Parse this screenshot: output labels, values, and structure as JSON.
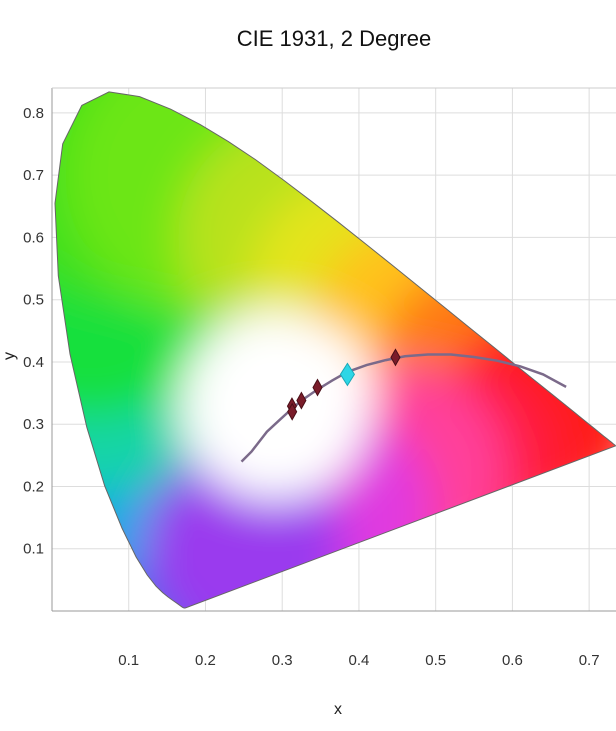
{
  "chart_data": {
    "type": "scatter",
    "title": "CIE 1931, 2 Degree",
    "xlabel": "x",
    "ylabel": "y",
    "xlim": [
      0,
      0.735
    ],
    "ylim": [
      0,
      0.84
    ],
    "xticks": [
      "0.1",
      "0.2",
      "0.3",
      "0.4",
      "0.5",
      "0.6",
      "0.7"
    ],
    "yticks": [
      "0.1",
      "0.2",
      "0.3",
      "0.4",
      "0.5",
      "0.6",
      "0.7",
      "0.8"
    ],
    "grid": true,
    "spectral_locus": [
      [
        0.1741,
        0.005
      ],
      [
        0.174,
        0.005
      ],
      [
        0.1738,
        0.0049
      ],
      [
        0.1736,
        0.0049
      ],
      [
        0.1733,
        0.0048
      ],
      [
        0.173,
        0.0048
      ],
      [
        0.1726,
        0.0048
      ],
      [
        0.1721,
        0.0048
      ],
      [
        0.1714,
        0.0051
      ],
      [
        0.1703,
        0.0058
      ],
      [
        0.1689,
        0.0069
      ],
      [
        0.1669,
        0.0086
      ],
      [
        0.1644,
        0.0109
      ],
      [
        0.1611,
        0.0138
      ],
      [
        0.1566,
        0.0177
      ],
      [
        0.151,
        0.0227
      ],
      [
        0.144,
        0.0297
      ],
      [
        0.1355,
        0.0399
      ],
      [
        0.1241,
        0.0578
      ],
      [
        0.1096,
        0.0868
      ],
      [
        0.0913,
        0.1327
      ],
      [
        0.0687,
        0.2007
      ],
      [
        0.0454,
        0.295
      ],
      [
        0.0235,
        0.4127
      ],
      [
        0.0082,
        0.5384
      ],
      [
        0.0039,
        0.6548
      ],
      [
        0.0139,
        0.7502
      ],
      [
        0.0389,
        0.812
      ],
      [
        0.0743,
        0.8338
      ],
      [
        0.1142,
        0.8262
      ],
      [
        0.1547,
        0.8059
      ],
      [
        0.1929,
        0.7816
      ],
      [
        0.2296,
        0.7543
      ],
      [
        0.2658,
        0.7243
      ],
      [
        0.3016,
        0.6923
      ],
      [
        0.3373,
        0.6589
      ],
      [
        0.3731,
        0.6245
      ],
      [
        0.4087,
        0.5896
      ],
      [
        0.4441,
        0.5547
      ],
      [
        0.4788,
        0.5202
      ],
      [
        0.5125,
        0.4866
      ],
      [
        0.5448,
        0.4544
      ],
      [
        0.5752,
        0.4242
      ],
      [
        0.6029,
        0.3965
      ],
      [
        0.627,
        0.3725
      ],
      [
        0.6482,
        0.3514
      ],
      [
        0.6658,
        0.334
      ],
      [
        0.6801,
        0.3197
      ],
      [
        0.6915,
        0.3083
      ],
      [
        0.7006,
        0.2993
      ],
      [
        0.7079,
        0.292
      ],
      [
        0.714,
        0.2859
      ],
      [
        0.719,
        0.2809
      ],
      [
        0.723,
        0.277
      ],
      [
        0.726,
        0.274
      ],
      [
        0.7283,
        0.2717
      ],
      [
        0.73,
        0.27
      ],
      [
        0.7311,
        0.2689
      ],
      [
        0.732,
        0.268
      ],
      [
        0.7327,
        0.2673
      ],
      [
        0.7334,
        0.2666
      ],
      [
        0.734,
        0.266
      ],
      [
        0.7344,
        0.2656
      ],
      [
        0.7346,
        0.2654
      ],
      [
        0.7347,
        0.2653
      ]
    ],
    "planckian_locus": [
      [
        0.247,
        0.24
      ],
      [
        0.26,
        0.256
      ],
      [
        0.28,
        0.288
      ],
      [
        0.295,
        0.305
      ],
      [
        0.31,
        0.322
      ],
      [
        0.325,
        0.338
      ],
      [
        0.345,
        0.355
      ],
      [
        0.365,
        0.37
      ],
      [
        0.385,
        0.384
      ],
      [
        0.41,
        0.395
      ],
      [
        0.435,
        0.403
      ],
      [
        0.46,
        0.409
      ],
      [
        0.49,
        0.412
      ],
      [
        0.52,
        0.412
      ],
      [
        0.55,
        0.408
      ],
      [
        0.58,
        0.402
      ],
      [
        0.61,
        0.393
      ],
      [
        0.64,
        0.38
      ],
      [
        0.67,
        0.36
      ]
    ],
    "points": [
      {
        "x": 0.3127,
        "y": 0.329,
        "color": "#7a1c2a",
        "marker": "diamond"
      },
      {
        "x": 0.313,
        "y": 0.32,
        "color": "#7a1c2a",
        "marker": "diamond"
      },
      {
        "x": 0.325,
        "y": 0.338,
        "color": "#7a1c2a",
        "marker": "diamond"
      },
      {
        "x": 0.346,
        "y": 0.359,
        "color": "#7a1c2a",
        "marker": "diamond"
      },
      {
        "x": 0.4476,
        "y": 0.4074,
        "color": "#7a1c2a",
        "marker": "diamond"
      },
      {
        "x": 0.385,
        "y": 0.38,
        "color": "#2ed6e6",
        "marker": "diamond",
        "size": "large"
      }
    ],
    "colors": {
      "axis": "#999999",
      "grid": "#dddddd",
      "locus_line": "#7b6a8a",
      "boundary": "#666666"
    }
  }
}
